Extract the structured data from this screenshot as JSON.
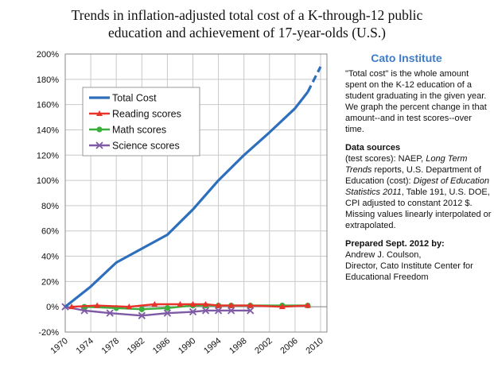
{
  "chart_data": {
    "type": "line",
    "title_lines": [
      "Trends in inflation-adjusted total cost of a K-through-12 public",
      "education and achievement of 17-year-olds  (U.S.)"
    ],
    "x_ticks": [
      "1970",
      "1974",
      "1978",
      "1982",
      "1986",
      "1990",
      "1994",
      "1998",
      "2002",
      "2006",
      "2010"
    ],
    "xlim": [
      1970,
      2011
    ],
    "y_ticks": [
      "-20%",
      "0%",
      "20%",
      "40%",
      "60%",
      "80%",
      "100%",
      "120%",
      "140%",
      "160%",
      "180%",
      "200%"
    ],
    "ylim": [
      -20,
      200
    ],
    "grid": true,
    "legend_position": "upper-left",
    "series": [
      {
        "name": "Total Cost",
        "color": "#2e6fbd",
        "marker": "none",
        "x": [
          1970,
          1974,
          1978,
          1982,
          1986,
          1990,
          1994,
          1998,
          2002,
          2006,
          2008
        ],
        "values": [
          0,
          16,
          35,
          46,
          57,
          77,
          100,
          120,
          138,
          157,
          170
        ],
        "projected_x": [
          2008,
          2010
        ],
        "projected_values": [
          170,
          190
        ]
      },
      {
        "name": "Reading scores",
        "color": "#e8332a",
        "marker": "triangle",
        "x": [
          1971,
          1975,
          1980,
          1984,
          1988,
          1990,
          1992,
          1994,
          1996,
          1999,
          2004,
          2008
        ],
        "values": [
          0,
          1,
          0,
          2,
          2,
          2,
          2,
          1,
          1,
          1,
          0,
          1
        ]
      },
      {
        "name": "Math scores",
        "color": "#3cae3c",
        "marker": "circle",
        "x": [
          1973,
          1978,
          1982,
          1986,
          1990,
          1992,
          1994,
          1996,
          1999,
          2004,
          2008
        ],
        "values": [
          0,
          -1,
          -2,
          -1,
          1,
          1,
          1,
          1,
          1,
          1,
          1
        ]
      },
      {
        "name": "Science scores",
        "color": "#7e5aa6",
        "marker": "x",
        "x": [
          1970,
          1973,
          1977,
          1982,
          1986,
          1990,
          1992,
          1994,
          1996,
          1999
        ],
        "values": [
          0,
          -3,
          -5,
          -7,
          -5,
          -4,
          -3,
          -3,
          -3,
          -3
        ]
      }
    ]
  },
  "sidebar": {
    "brand": "Cato Institute",
    "description": "\"Total cost\" is the whole amount spent on the K-12 education of a student graduating in the given year. We graph the percent change in that amount--and in test scores--over time.",
    "sources_heading": "Data sources",
    "sources_1": "(test scores): NAEP, ",
    "sources_2": "Long Term Trends",
    "sources_3": " reports, U.S. Department of Education (cost): ",
    "sources_4": "Digest of Education Statistics 2011",
    "sources_5": ", Table 191, U.S. DOE, CPI adjusted to constant 2012 $.  Missing values linearly interpolated or extrapolated.",
    "prepared_heading": "Prepared Sept. 2012 by:",
    "prepared_by": "Andrew J. Coulson,",
    "prepared_role": "Director, Cato Institute Center for Educational Freedom"
  }
}
